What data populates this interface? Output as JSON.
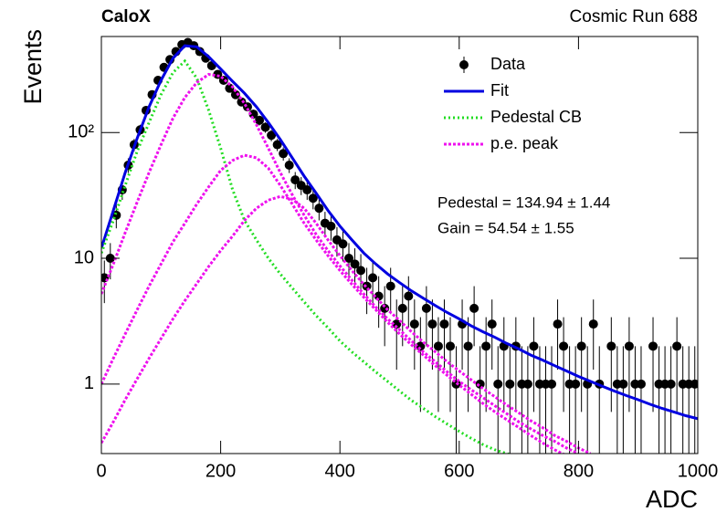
{
  "chart_data": {
    "type": "histogram",
    "title": "CaloX",
    "subtitle": "Cosmic Run 688",
    "x_label": "ADC",
    "y_label": "Events",
    "xlim": [
      0,
      1000
    ],
    "xticks": [
      0,
      200,
      400,
      600,
      800,
      1000
    ],
    "ylim": [
      0.28,
      580
    ],
    "yticks": [
      1,
      10,
      {
        "value": 100,
        "label": "10²"
      }
    ],
    "ylog": true,
    "legend": "top-right",
    "annotations": [
      "Pedestal = 134.94 ± 1.44",
      "Gain = 54.54 ± 1.55"
    ],
    "series": [
      {
        "name": "Data",
        "style": "points",
        "color": "#000000",
        "x": [
          5,
          15,
          25,
          35,
          45,
          55,
          65,
          75,
          85,
          95,
          105,
          115,
          125,
          135,
          145,
          155,
          165,
          175,
          185,
          195,
          205,
          215,
          225,
          235,
          245,
          255,
          265,
          275,
          285,
          295,
          305,
          315,
          325,
          335,
          345,
          355,
          365,
          375,
          385,
          395,
          405,
          415,
          425,
          435,
          445,
          455,
          465,
          475,
          485,
          495,
          505,
          515,
          525,
          535,
          545,
          555,
          565,
          575,
          585,
          595,
          605,
          615,
          625,
          635,
          645,
          655,
          665,
          675,
          685,
          695,
          705,
          715,
          725,
          735,
          745,
          755,
          765,
          775,
          785,
          795,
          805,
          815,
          825,
          835,
          845,
          855,
          865,
          875,
          885,
          895,
          905,
          915,
          925,
          935,
          945,
          955,
          965,
          975,
          985,
          995
        ],
        "values": [
          7,
          10,
          22,
          35,
          55,
          80,
          105,
          150,
          200,
          260,
          330,
          380,
          440,
          500,
          520,
          490,
          440,
          390,
          340,
          290,
          260,
          225,
          200,
          175,
          160,
          140,
          125,
          110,
          95,
          80,
          68,
          55,
          42,
          38,
          35,
          30,
          25,
          19,
          18,
          14,
          13,
          10,
          9,
          8,
          6,
          7,
          5,
          4,
          6,
          3,
          4,
          5,
          3,
          2,
          4,
          3,
          2,
          3,
          2,
          1,
          3,
          2,
          4,
          1,
          2,
          3,
          1,
          2,
          1,
          2,
          1,
          1,
          2,
          1,
          1,
          1,
          3,
          2,
          1,
          1,
          2,
          1,
          3,
          1,
          null,
          2,
          1,
          1,
          2,
          1,
          1,
          null,
          2,
          1,
          1,
          1,
          2,
          1,
          1,
          1
        ],
        "errors": [
          2.6,
          3.2,
          4.7,
          5.9,
          7.4,
          8.9,
          10.2,
          12.2,
          14.1,
          16.1,
          18.2,
          19.5,
          21,
          22.4,
          22.8,
          22.1,
          21,
          19.7,
          18.4,
          17,
          16.1,
          15,
          14.1,
          13.2,
          12.6,
          11.8,
          11.2,
          10.5,
          9.7,
          8.9,
          8.2,
          7.4,
          6.5,
          6.2,
          5.9,
          5.5,
          5,
          4.4,
          4.2,
          3.7,
          3.6,
          3.2,
          3,
          2.8,
          2.4,
          2.6,
          2.2,
          2,
          2.4,
          1.7,
          2,
          2.2,
          1.7,
          1.4,
          2,
          1.7,
          1.4,
          1.7,
          1.4,
          1,
          1.7,
          1.4,
          2,
          1,
          1.4,
          1.7,
          1,
          1.4,
          1,
          1.4,
          1,
          1,
          1.4,
          1,
          1,
          1,
          1.7,
          1.4,
          1,
          1,
          1.4,
          1,
          1.7,
          1,
          null,
          1.4,
          1,
          1,
          1.4,
          1,
          1,
          null,
          1.4,
          1,
          1,
          1,
          1.4,
          1,
          1,
          1
        ]
      },
      {
        "name": "Fit",
        "style": "solid",
        "color": "#0000e0",
        "x": [
          0,
          20,
          40,
          60,
          80,
          100,
          120,
          140,
          160,
          180,
          200,
          220,
          240,
          260,
          280,
          300,
          320,
          340,
          360,
          380,
          400,
          420,
          440,
          460,
          480,
          500,
          520,
          540,
          560,
          580,
          600,
          620,
          640,
          660,
          680,
          700,
          720,
          740,
          760,
          780,
          800,
          820,
          840,
          860,
          880,
          900,
          920,
          940,
          960,
          980,
          1000
        ],
        "values": [
          12,
          24,
          48,
          90,
          160,
          260,
          390,
          490,
          480,
          400,
          320,
          255,
          205,
          160,
          120,
          88,
          63,
          45,
          33,
          24,
          18,
          14,
          11,
          9,
          7.5,
          6.4,
          5.5,
          4.8,
          4.2,
          3.7,
          3.3,
          2.9,
          2.6,
          2.35,
          2.1,
          1.9,
          1.7,
          1.55,
          1.4,
          1.27,
          1.15,
          1.05,
          0.96,
          0.88,
          0.81,
          0.75,
          0.69,
          0.64,
          0.6,
          0.56,
          0.53
        ]
      },
      {
        "name": "Pedestal CB",
        "style": "dotted",
        "color": "#22dd22",
        "x": [
          0,
          20,
          40,
          60,
          80,
          100,
          120,
          140,
          160,
          180,
          200,
          220,
          240,
          260,
          280,
          300,
          320,
          340,
          360,
          380,
          400,
          420,
          440,
          460,
          480,
          500,
          520,
          540,
          560,
          580,
          600,
          620,
          640,
          660,
          680,
          700
        ],
        "values": [
          11,
          20,
          38,
          71,
          120,
          200,
          300,
          370,
          270,
          150,
          75,
          35,
          20,
          14,
          10,
          7.5,
          5.8,
          4.5,
          3.5,
          2.8,
          2.2,
          1.8,
          1.5,
          1.25,
          1.05,
          0.88,
          0.74,
          0.64,
          0.55,
          0.48,
          0.42,
          0.37,
          0.33,
          0.3,
          0.28,
          0.26
        ]
      },
      {
        "name": "p.e. peak",
        "style": "dashed",
        "color": "#ee11ee",
        "x": [
          0,
          20,
          40,
          60,
          80,
          100,
          120,
          140,
          160,
          180,
          200,
          220,
          240,
          260,
          280,
          300,
          320,
          340,
          360,
          380,
          400,
          420,
          440,
          460,
          480,
          500,
          520,
          540,
          560,
          580,
          600,
          620,
          640,
          660,
          680,
          700,
          720,
          740,
          760,
          780,
          800
        ],
        "values": [
          5.2,
          9,
          16,
          28,
          48,
          80,
          130,
          190,
          250,
          290,
          280,
          230,
          170,
          115,
          75,
          48,
          32,
          22,
          15.5,
          11.5,
          8.7,
          6.7,
          5.2,
          4.1,
          3.3,
          2.7,
          2.2,
          1.8,
          1.5,
          1.25,
          1.05,
          0.9,
          0.78,
          0.67,
          0.58,
          0.5,
          0.44,
          0.39,
          0.35,
          0.31,
          0.28
        ]
      },
      {
        "style": "dashed",
        "color": "#ee11ee",
        "x": [
          0,
          20,
          40,
          60,
          80,
          100,
          120,
          140,
          160,
          180,
          200,
          220,
          240,
          260,
          280,
          300,
          320,
          340,
          360,
          380,
          400,
          420,
          440,
          460,
          480,
          500,
          520,
          540,
          560,
          580,
          600,
          620,
          640,
          660,
          680,
          700,
          720,
          740,
          760,
          780
        ],
        "values": [
          1,
          1.6,
          2.5,
          3.9,
          6,
          9,
          13.5,
          19,
          27,
          37,
          50,
          60,
          66,
          63,
          52,
          38,
          27,
          19,
          14,
          10.5,
          8,
          6.2,
          4.9,
          3.9,
          3.1,
          2.5,
          2.05,
          1.7,
          1.4,
          1.17,
          0.98,
          0.83,
          0.7,
          0.6,
          0.52,
          0.45,
          0.39,
          0.34,
          0.3,
          0.27
        ]
      },
      {
        "style": "dashed",
        "color": "#ee11ee",
        "x": [
          0,
          20,
          40,
          60,
          80,
          100,
          120,
          140,
          160,
          180,
          200,
          220,
          240,
          260,
          280,
          300,
          320,
          340,
          360,
          380,
          400,
          420,
          440,
          460,
          480,
          500,
          520,
          540,
          560,
          580,
          600,
          620,
          640,
          660,
          680,
          700,
          720,
          740,
          760,
          780,
          800,
          820
        ],
        "values": [
          0.34,
          0.5,
          0.75,
          1.1,
          1.6,
          2.3,
          3.3,
          4.6,
          6.3,
          8.6,
          11.5,
          15,
          20,
          25,
          29,
          31,
          29.5,
          25,
          19,
          14,
          10.5,
          8,
          6.2,
          4.9,
          3.9,
          3.2,
          2.6,
          2.15,
          1.8,
          1.5,
          1.27,
          1.08,
          0.92,
          0.79,
          0.68,
          0.59,
          0.51,
          0.45,
          0.39,
          0.35,
          0.31,
          0.28
        ]
      }
    ]
  }
}
